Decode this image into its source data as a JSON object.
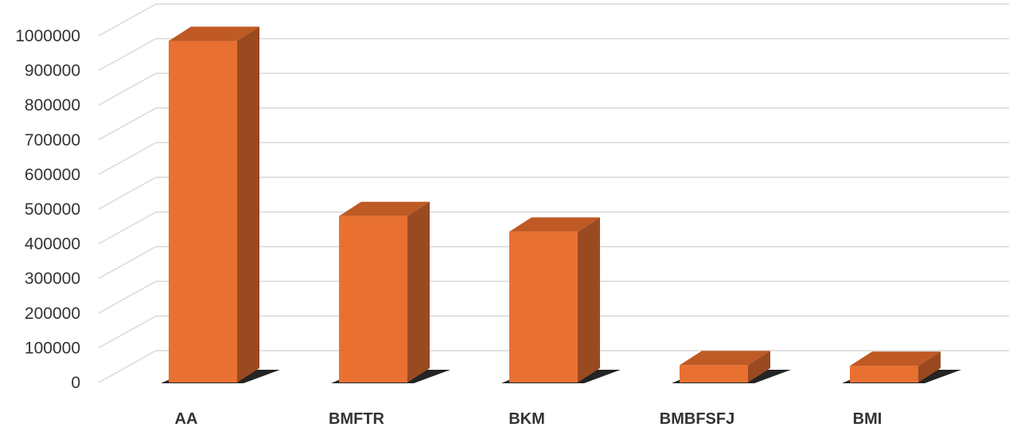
{
  "chart_data": {
    "type": "bar",
    "categories": [
      "AA",
      "BMFTR",
      "BKM",
      "BMBFSFJ",
      "BMI"
    ],
    "values": [
      985000,
      480000,
      435000,
      50000,
      48000
    ],
    "ylim": [
      0,
      1000000
    ],
    "y_ticks": [
      "0",
      "100000",
      "200000",
      "300000",
      "400000",
      "500000",
      "600000",
      "700000",
      "800000",
      "900000",
      "1000000"
    ],
    "grid": true,
    "legend": "none",
    "style": "3d-column",
    "colors": {
      "bar_front": "#E87132",
      "bar_side": "#9A4A21",
      "bar_top": "#BF5A24",
      "grid": "#D9D9D9",
      "shadow": "#111111"
    }
  }
}
